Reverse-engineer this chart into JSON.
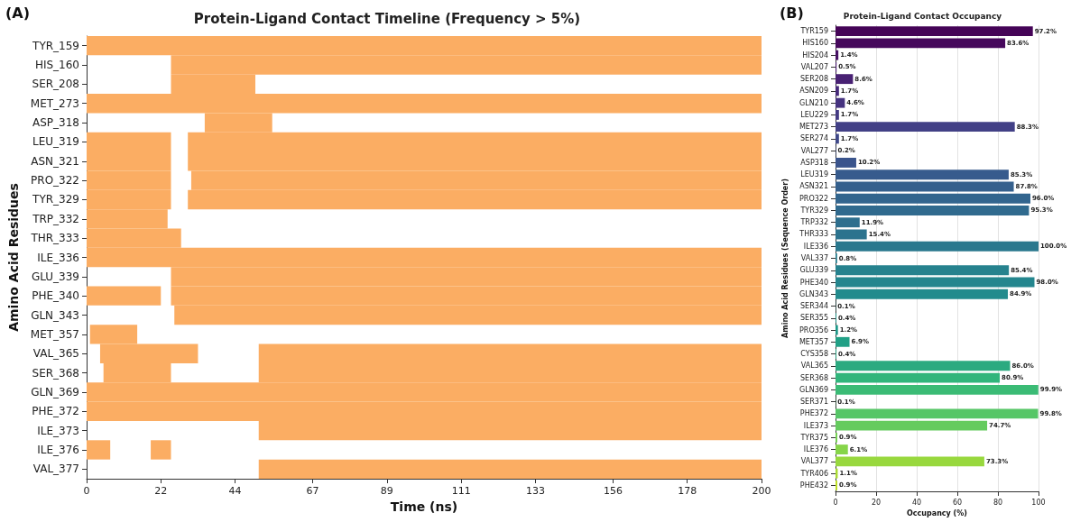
{
  "chart_data": [
    {
      "type": "bar",
      "orientation": "horizontal",
      "title": "Protein-Ligand Contact Timeline (Frequency > 5%)",
      "xlabel": "Time (ns)",
      "ylabel": "Amino Acid Residues",
      "annotations": [
        "(A)"
      ],
      "categories": [
        "TYR_159",
        "HIS_160",
        "SER_208",
        "MET_273",
        "ASP_318",
        "LEU_319",
        "ASN_321",
        "PRO_322",
        "TYR_329",
        "TRP_332",
        "THR_333",
        "ILE_336",
        "GLU_339",
        "PHE_340",
        "GLN_343",
        "MET_357",
        "VAL_365",
        "SER_368",
        "GLN_369",
        "PHE_372",
        "ILE_373",
        "ILE_376",
        "VAL_377"
      ],
      "series": [
        {
          "color": "#fbad63",
          "base": [
            0,
            25,
            25,
            0,
            35,
            0,
            0,
            0,
            0,
            0,
            0,
            0,
            25,
            0,
            26,
            1,
            4,
            5,
            0,
            0,
            51,
            0,
            51
          ],
          "values": [
            200,
            175,
            25,
            200,
            20,
            25,
            25,
            25,
            25,
            24,
            28,
            200,
            175,
            22,
            174,
            14,
            29,
            20,
            200,
            200,
            149,
            7,
            149
          ]
        },
        {
          "color": "#fbad63",
          "base": [
            null,
            null,
            null,
            null,
            null,
            30,
            30,
            31,
            30,
            null,
            null,
            null,
            null,
            25,
            null,
            null,
            51,
            51,
            null,
            null,
            null,
            19,
            null
          ],
          "values": [
            null,
            null,
            null,
            null,
            null,
            170,
            170,
            169,
            170,
            null,
            null,
            null,
            null,
            175,
            null,
            null,
            149,
            149,
            null,
            null,
            null,
            6,
            null
          ]
        }
      ],
      "xlim": [
        0,
        200
      ],
      "xticks": [
        0,
        22,
        44,
        67,
        89,
        111,
        133,
        156,
        178,
        200
      ]
    },
    {
      "type": "bar",
      "orientation": "horizontal",
      "title": "Protein-Ligand Contact Occupancy",
      "xlabel": "Occupancy (%)",
      "ylabel": "Amino Acid Residues (Sequence Order)",
      "annotations": [
        "(B)"
      ],
      "categories": [
        "TYR159",
        "HIS160",
        "HIS204",
        "VAL207",
        "SER208",
        "ASN209",
        "GLN210",
        "LEU229",
        "MET273",
        "SER274",
        "VAL277",
        "ASP318",
        "LEU319",
        "ASN321",
        "PRO322",
        "TYR329",
        "TRP332",
        "THR333",
        "ILE336",
        "VAL337",
        "GLU339",
        "PHE340",
        "GLN343",
        "SER344",
        "SER355",
        "PRO356",
        "MET357",
        "CYS358",
        "VAL365",
        "SER368",
        "GLN369",
        "SER371",
        "PHE372",
        "ILE373",
        "TYR375",
        "ILE376",
        "VAL377",
        "TYR406",
        "PHE432"
      ],
      "values": [
        97.2,
        83.6,
        1.4,
        0.5,
        8.6,
        1.7,
        4.6,
        1.7,
        88.3,
        1.7,
        0.2,
        10.2,
        85.3,
        87.8,
        96.0,
        95.3,
        11.9,
        15.4,
        100.0,
        0.8,
        85.4,
        98.0,
        84.9,
        0.1,
        0.4,
        1.2,
        6.9,
        0.4,
        86.0,
        80.9,
        99.9,
        0.1,
        99.8,
        74.7,
        0.9,
        6.1,
        73.3,
        1.1,
        0.9
      ],
      "value_labels": [
        "97.2%",
        "83.6%",
        "1.4%",
        "0.5%",
        "8.6%",
        "1.7%",
        "4.6%",
        "1.7%",
        "88.3%",
        "1.7%",
        "0.2%",
        "10.2%",
        "85.3%",
        "87.8%",
        "96.0%",
        "95.3%",
        "11.9%",
        "15.4%",
        "100.0%",
        "0.8%",
        "85.4%",
        "98.0%",
        "84.9%",
        "0.1%",
        "0.4%",
        "1.2%",
        "6.9%",
        "0.4%",
        "86.0%",
        "80.9%",
        "99.9%",
        "0.1%",
        "99.8%",
        "74.7%",
        "0.9%",
        "6.1%",
        "73.3%",
        "1.1%",
        "0.9%"
      ],
      "colors": [
        "#450457",
        "#46085c",
        "#471164",
        "#481a6c",
        "#482173",
        "#472a7a",
        "#46337f",
        "#443a83",
        "#424086",
        "#3f4889",
        "#3c4f8a",
        "#3a548c",
        "#375b8d",
        "#35608d",
        "#32658e",
        "#306a8e",
        "#2e6f8e",
        "#2c738e",
        "#2a788e",
        "#287d8e",
        "#26828e",
        "#24868e",
        "#228b8d",
        "#20908d",
        "#1f958b",
        "#1f9a8a",
        "#21a086",
        "#25a584",
        "#2baa80",
        "#31b57b",
        "#3bbb75",
        "#48c16e",
        "#56c667",
        "#65cb5e",
        "#75d054",
        "#86d549",
        "#98d83e",
        "#aadc32",
        "#bddf26"
      ],
      "xlim": [
        0,
        100
      ],
      "xticks": [
        0,
        20,
        40,
        60,
        80,
        100
      ],
      "grid": "x"
    }
  ]
}
